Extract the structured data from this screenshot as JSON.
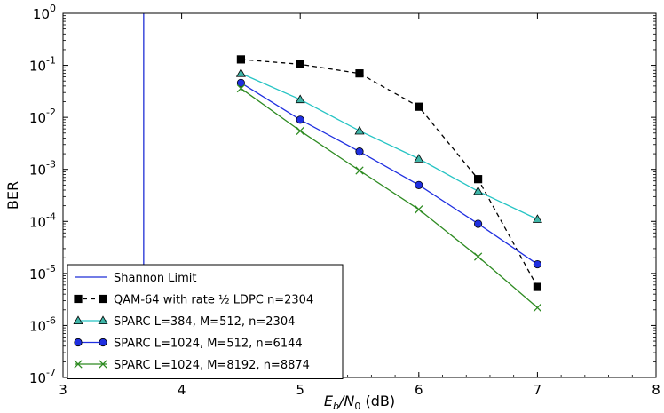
{
  "chart_data": {
    "type": "line",
    "title": "",
    "xlabel": "E_b/N_0 (dB)",
    "xlabel_parts": {
      "e": "E",
      "b": "b",
      "slash": "/N",
      "zero": "0",
      "unit": " (dB)"
    },
    "ylabel": "BER",
    "xlim": [
      3,
      8
    ],
    "ylim_log10": [
      -7,
      0
    ],
    "y_scale": "log",
    "grid": false,
    "legend_position": "lower-left",
    "x_ticks": [
      "3",
      "4",
      "5",
      "6",
      "7",
      "8"
    ],
    "y_ticks": [
      {
        "base": "10",
        "exp": "0"
      },
      {
        "base": "10",
        "exp": "-1"
      },
      {
        "base": "10",
        "exp": "-2"
      },
      {
        "base": "10",
        "exp": "-3"
      },
      {
        "base": "10",
        "exp": "-4"
      },
      {
        "base": "10",
        "exp": "-5"
      },
      {
        "base": "10",
        "exp": "-6"
      },
      {
        "base": "10",
        "exp": "-7"
      }
    ],
    "vline": {
      "name": "Shannon Limit",
      "x": 3.68,
      "color": "#1f2fd6"
    },
    "series": [
      {
        "name": "QAM-64 with rate ½ LDPC n=2304",
        "color": "#000000",
        "marker": "square",
        "dashed": true,
        "x": [
          4.5,
          5.0,
          5.5,
          6.0,
          6.5,
          7.0
        ],
        "y": [
          0.13,
          0.105,
          0.07,
          0.016,
          0.00065,
          5.5e-06
        ]
      },
      {
        "name": "SPARC L=384, M=512, n=2304",
        "color": "#26c4c4",
        "marker_fill": "#3fb6a8",
        "marker": "triangle",
        "dashed": false,
        "x": [
          4.5,
          5.0,
          5.5,
          6.0,
          6.5,
          7.0
        ],
        "y": [
          0.07,
          0.022,
          0.0055,
          0.0016,
          0.00038,
          0.00011
        ]
      },
      {
        "name": "SPARC L=1024, M=512, n=6144",
        "color": "#1f2fe0",
        "marker": "circle",
        "dashed": false,
        "x": [
          4.5,
          5.0,
          5.5,
          6.0,
          6.5,
          7.0
        ],
        "y": [
          0.046,
          0.009,
          0.0022,
          0.0005,
          9e-05,
          1.5e-05
        ]
      },
      {
        "name": "SPARC L=1024, M=8192, n=8874",
        "color": "#2e8b22",
        "marker": "x",
        "dashed": false,
        "x": [
          4.5,
          5.0,
          5.5,
          6.0,
          6.5,
          7.0
        ],
        "y": [
          0.036,
          0.0055,
          0.00095,
          0.00017,
          2.1e-05,
          2.2e-06
        ]
      }
    ]
  }
}
